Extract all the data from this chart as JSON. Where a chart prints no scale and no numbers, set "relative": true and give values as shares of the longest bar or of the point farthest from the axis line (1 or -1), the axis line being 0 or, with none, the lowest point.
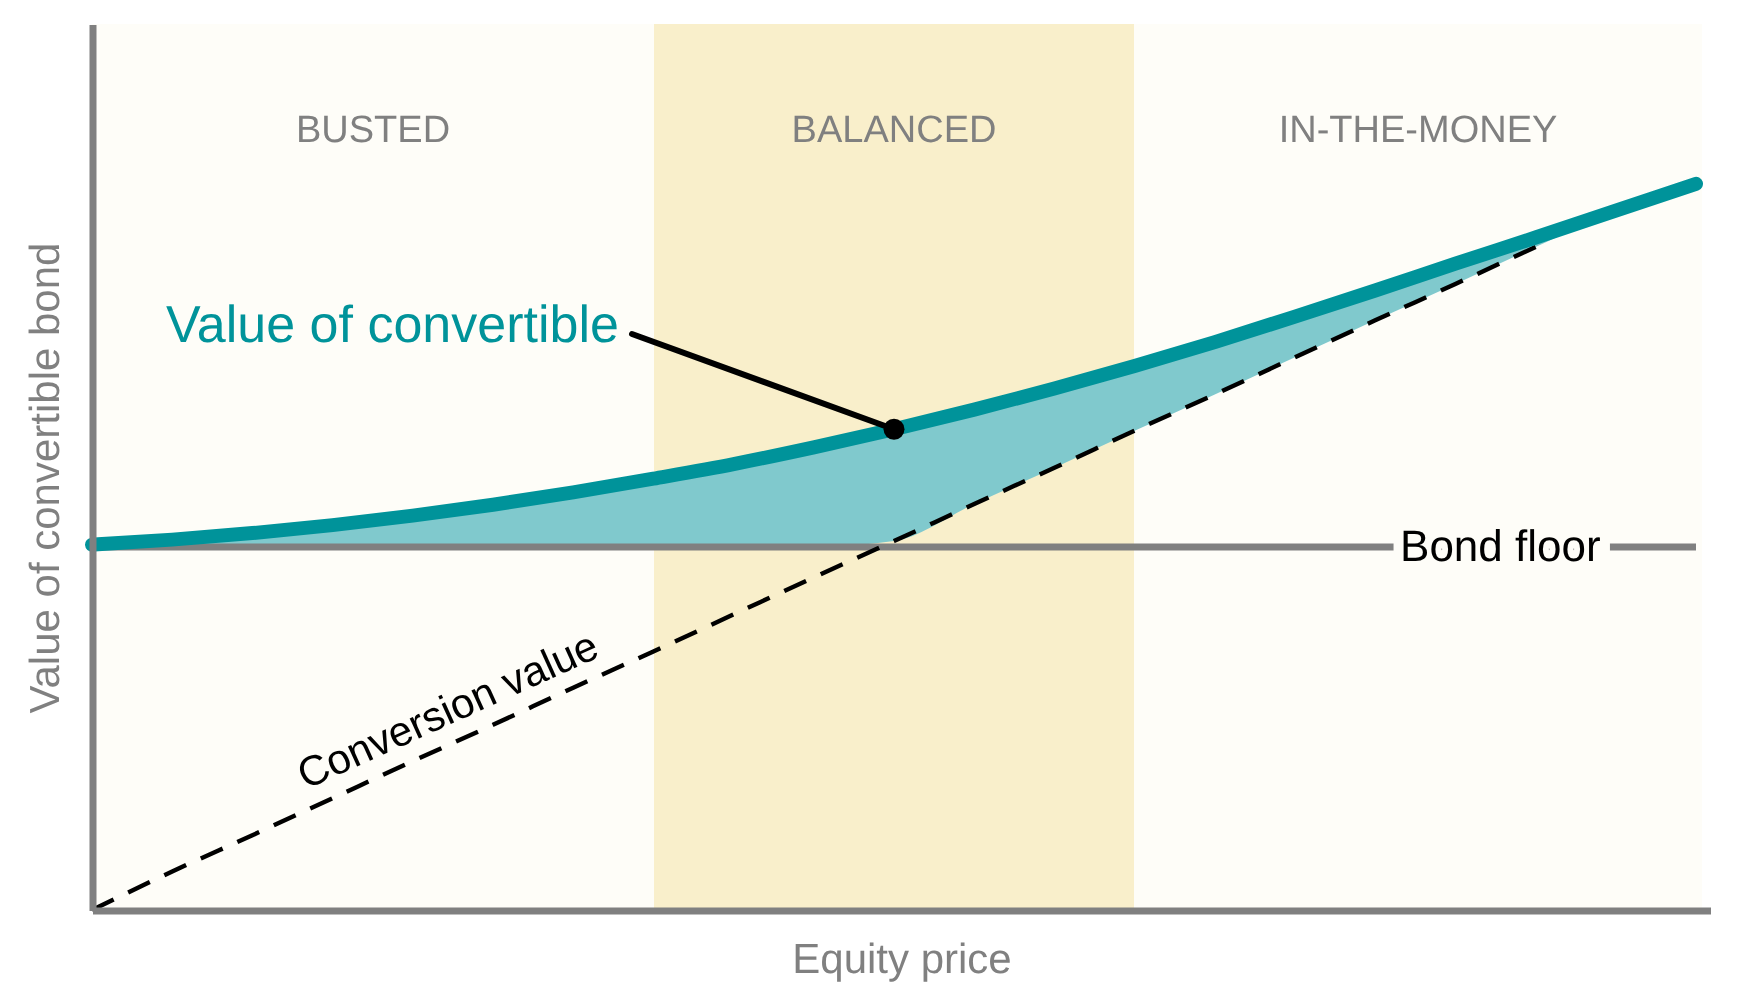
{
  "chart_data": {
    "type": "line",
    "relative": true,
    "xlabel": "Equity price",
    "ylabel": "Value of convertible bond",
    "annotations": [
      "BUSTED",
      "BALANCED",
      "IN-THE-MONEY"
    ],
    "categories": [
      null,
      null,
      null,
      null,
      null,
      null,
      null,
      null,
      null,
      null,
      null,
      null,
      null,
      null,
      null,
      null,
      null,
      null,
      null,
      null,
      null
    ],
    "series": [
      {
        "name": "Value of convertible",
        "color": "#00939a",
        "values": [
          0.503,
          0.51,
          0.519,
          0.53,
          0.543,
          0.558,
          0.575,
          0.594,
          0.614,
          0.637,
          0.662,
          0.689,
          0.718,
          0.749,
          0.782,
          0.817,
          0.853,
          0.89,
          0.926,
          0.963,
          1.0
        ],
        "lower": [
          0.5,
          0.5,
          0.5,
          0.5,
          0.5,
          0.5,
          0.5,
          0.5,
          0.5,
          0.5,
          0.508,
          0.559,
          0.609,
          0.66,
          0.71,
          0.761,
          0.812,
          0.862,
          0.913,
          0.963,
          1.0
        ],
        "upper": [
          0.503,
          0.51,
          0.519,
          0.53,
          0.543,
          0.558,
          0.575,
          0.594,
          0.614,
          0.637,
          0.662,
          0.689,
          0.718,
          0.749,
          0.782,
          0.817,
          0.853,
          0.89,
          0.926,
          0.963,
          1.0
        ]
      },
      {
        "name": "Conversion value",
        "color": "#000000",
        "line_style": "dashed",
        "values": [
          0.0,
          0.053,
          0.103,
          0.154,
          0.205,
          0.255,
          0.306,
          0.356,
          0.407,
          0.458,
          0.508,
          0.559,
          0.609,
          0.66,
          0.71,
          0.761,
          0.812,
          0.862,
          0.913,
          null,
          null
        ]
      }
    ],
    "ref_lines": [
      {
        "axis": "y",
        "value": 0.5,
        "label": "Bond floor",
        "color": "#808080"
      }
    ]
  }
}
